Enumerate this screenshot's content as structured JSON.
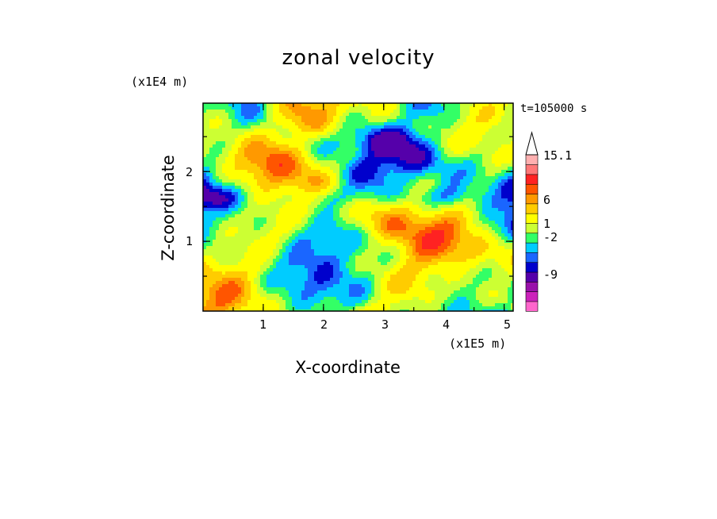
{
  "chart_data": {
    "type": "heatmap",
    "title": "zonal velocity",
    "xlabel": "X-coordinate",
    "ylabel": "Z-coordinate",
    "x_unit": "(x1E5 m)",
    "y_unit": "(x1E4 m)",
    "time_label": "t=105000 s",
    "xlim": [
      0,
      5.15
    ],
    "ylim": [
      0,
      2.98
    ],
    "x_ticks": [
      "1",
      "2",
      "3",
      "4",
      "5"
    ],
    "y_ticks": [
      "1",
      "2"
    ],
    "colorbar": {
      "levels_shown": [
        "15.1",
        "6",
        "1",
        "-2",
        "-9"
      ],
      "colors": [
        "#ff66cc",
        "#cc22bb",
        "#9911aa",
        "#5500aa",
        "#0000cc",
        "#1a66ff",
        "#00ccff",
        "#33ff66",
        "#ccff33",
        "#ffff00",
        "#ffcc00",
        "#ff9900",
        "#ff5500",
        "#ff2222",
        "#ff7777",
        "#ffb0b0"
      ]
    }
  }
}
